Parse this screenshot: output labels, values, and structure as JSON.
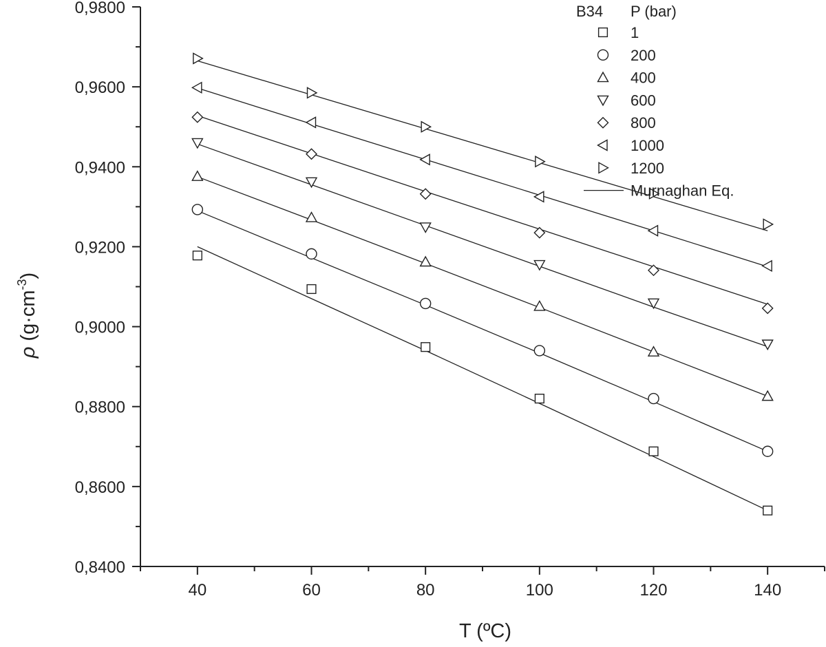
{
  "chart_data": {
    "type": "scatter",
    "title": "",
    "xlabel": "T (ºC)",
    "ylabel_symbol": "ρ",
    "ylabel_unit": "(g·cm",
    "ylabel_exp": "-3",
    "ylabel_close": ")",
    "xlim": [
      30,
      150
    ],
    "ylim": [
      0.84,
      0.98
    ],
    "x_ticks": [
      40,
      60,
      80,
      100,
      120,
      140
    ],
    "x_tick_labels": [
      "40",
      "60",
      "80",
      "100",
      "120",
      "140"
    ],
    "y_ticks": [
      0.84,
      0.86,
      0.88,
      0.9,
      0.92,
      0.94,
      0.96,
      0.98
    ],
    "y_tick_labels": [
      "0,8400",
      "0,8600",
      "0,8800",
      "0,9000",
      "0,9200",
      "0,9400",
      "0,9600",
      "0,9800"
    ],
    "legend": {
      "position": "top-right",
      "sample_label": "B34",
      "title": "P (bar)",
      "fit_label": "Murnaghan Eq."
    },
    "x": [
      40,
      60,
      80,
      100,
      120,
      140
    ],
    "series": [
      {
        "name": "1",
        "marker": "square",
        "values": [
          0.9178,
          0.9094,
          0.8949,
          0.882,
          0.8688,
          0.854
        ],
        "fit": [
          0.92,
          0.907,
          0.894,
          0.8808,
          0.8675,
          0.854
        ]
      },
      {
        "name": "200",
        "marker": "circle",
        "values": [
          0.9293,
          0.9182,
          0.9058,
          0.894,
          0.882,
          0.8688
        ],
        "fit": [
          0.929,
          0.9172,
          0.9054,
          0.8934,
          0.8812,
          0.8688
        ]
      },
      {
        "name": "400",
        "marker": "triangle-up",
        "values": [
          0.9376,
          0.9273,
          0.9162,
          0.9051,
          0.8937,
          0.8826
        ],
        "fit": [
          0.9375,
          0.9267,
          0.9158,
          0.9048,
          0.8937,
          0.8826
        ]
      },
      {
        "name": "600",
        "marker": "triangle-down",
        "values": [
          0.946,
          0.9362,
          0.9249,
          0.9155,
          0.9059,
          0.8956
        ],
        "fit": [
          0.9457,
          0.9355,
          0.9253,
          0.9151,
          0.9049,
          0.895
        ]
      },
      {
        "name": "800",
        "marker": "diamond",
        "values": [
          0.9524,
          0.9432,
          0.9332,
          0.9235,
          0.9141,
          0.9046
        ],
        "fit": [
          0.9528,
          0.9433,
          0.9338,
          0.9244,
          0.915,
          0.9056
        ]
      },
      {
        "name": "1000",
        "marker": "triangle-left",
        "values": [
          0.9598,
          0.9511,
          0.9418,
          0.9325,
          0.924,
          0.9152
        ],
        "fit": [
          0.9597,
          0.9507,
          0.9418,
          0.9329,
          0.924,
          0.915
        ]
      },
      {
        "name": "1200",
        "marker": "triangle-right",
        "values": [
          0.9671,
          0.9585,
          0.95,
          0.9413,
          0.9333,
          0.9256
        ],
        "fit": [
          0.9665,
          0.958,
          0.9495,
          0.941,
          0.9325,
          0.924
        ]
      }
    ]
  }
}
